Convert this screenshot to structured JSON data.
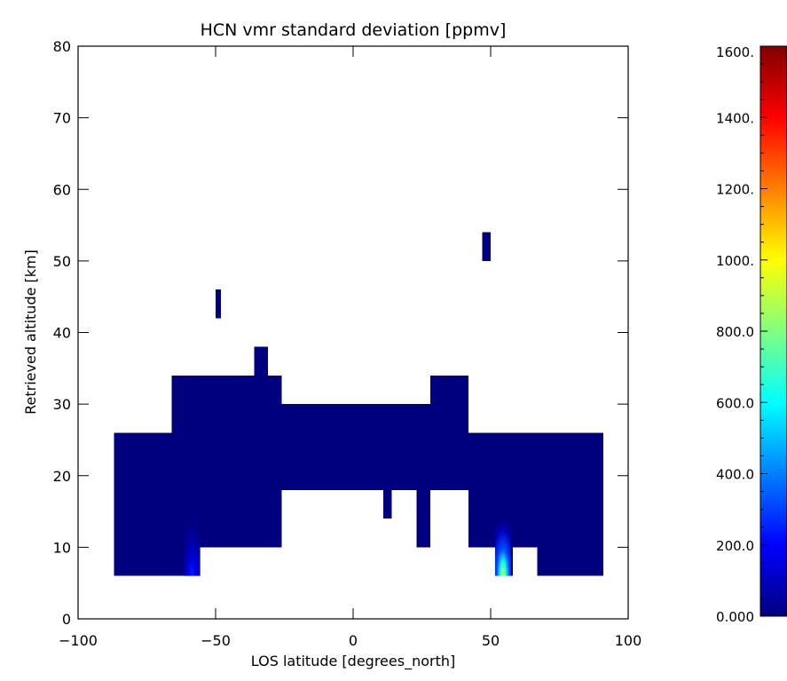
{
  "chart_data": {
    "type": "heatmap",
    "title": "HCN vmr standard deviation [ppmv]",
    "xlabel": "LOS latitude [degrees_north]",
    "ylabel": "Retrieved altitude [km]",
    "xlim": [
      -100,
      100
    ],
    "ylim": [
      0,
      80
    ],
    "xticks": [
      -100,
      -50,
      0,
      50,
      100
    ],
    "xtick_labels": [
      "−100",
      "−50",
      "0",
      "50",
      "100"
    ],
    "yticks": [
      0,
      10,
      20,
      30,
      40,
      50,
      60,
      70,
      80
    ],
    "ytick_labels": [
      "0",
      "10",
      "20",
      "30",
      "40",
      "50",
      "60",
      "70",
      "80"
    ],
    "colorbar": {
      "range": [
        0,
        1600
      ],
      "ticks": [
        0,
        200,
        400,
        600,
        800,
        1000,
        1200,
        1400,
        1600
      ],
      "tick_labels": [
        "0.000",
        "200.0",
        "400.0",
        "600.0",
        "800.0",
        "1000.",
        "1200.",
        "1400.",
        "1600."
      ],
      "colormap": [
        "#00007f",
        "#0000ff",
        "#0080ff",
        "#00ffff",
        "#80ff80",
        "#ffff00",
        "#ff8000",
        "#ff0000",
        "#7f0000"
      ]
    },
    "background_value_color": "#00007f",
    "cells": [
      {
        "lat": [
          -87,
          91
        ],
        "alt": [
          18,
          26
        ]
      },
      {
        "lat": [
          -87,
          -26
        ],
        "alt": [
          10,
          18
        ]
      },
      {
        "lat": [
          42,
          91
        ],
        "alt": [
          10,
          18
        ]
      },
      {
        "lat": [
          -87,
          -56
        ],
        "alt": [
          6,
          10
        ]
      },
      {
        "lat": [
          52,
          58
        ],
        "alt": [
          6,
          10
        ]
      },
      {
        "lat": [
          67,
          91
        ],
        "alt": [
          6,
          10
        ]
      },
      {
        "lat": [
          -26,
          28
        ],
        "alt": [
          26,
          30
        ]
      },
      {
        "lat": [
          -66,
          -26
        ],
        "alt": [
          26,
          34
        ]
      },
      {
        "lat": [
          -36,
          -31
        ],
        "alt": [
          34,
          38
        ]
      },
      {
        "lat": [
          28,
          42
        ],
        "alt": [
          26,
          34
        ]
      },
      {
        "lat": [
          11,
          14
        ],
        "alt": [
          14,
          18
        ]
      },
      {
        "lat": [
          23,
          28
        ],
        "alt": [
          14,
          18
        ]
      },
      {
        "lat": [
          23,
          28
        ],
        "alt": [
          10,
          14
        ]
      },
      {
        "lat": [
          -50,
          -48
        ],
        "alt": [
          42,
          46
        ]
      },
      {
        "lat": [
          47,
          50
        ],
        "alt": [
          50,
          54
        ]
      }
    ],
    "hotspots": [
      {
        "lat": -58.5,
        "alt": 6,
        "peak_value": 250
      },
      {
        "lat": 54.5,
        "alt": 6,
        "peak_value": 900
      }
    ]
  }
}
